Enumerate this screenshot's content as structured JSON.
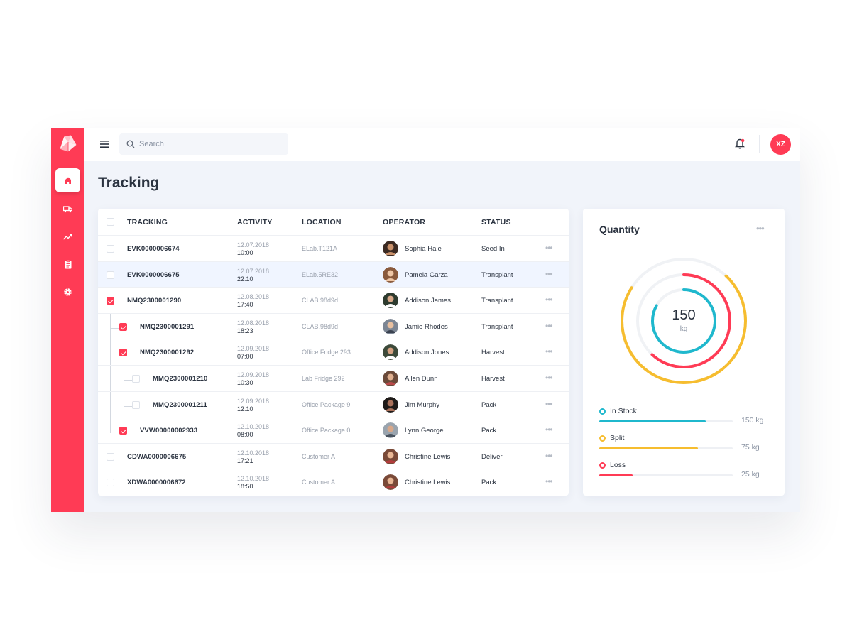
{
  "search": {
    "placeholder": "Search"
  },
  "user": {
    "initials": "XZ"
  },
  "page": {
    "title": "Tracking"
  },
  "table": {
    "headers": [
      "TRACKING",
      "ACTIVITY",
      "LOCATION",
      "OPERATOR",
      "STATUS"
    ],
    "rows": [
      {
        "tracking": "EVK0000006674",
        "date": "12.07.2018",
        "time": "10:00",
        "location": "ELab.T121A",
        "operator": "Sophia Hale",
        "status": "Seed In"
      },
      {
        "tracking": "EVK0000006675",
        "date": "12.07.2018",
        "time": "22:10",
        "location": "ELab.5RE32",
        "operator": "Pamela Garza",
        "status": "Transplant"
      },
      {
        "tracking": "NMQ2300001290",
        "date": "12.08.2018",
        "time": "17:40",
        "location": "CLAB.98d9d",
        "operator": "Addison James",
        "status": "Transplant"
      },
      {
        "tracking": "NMQ2300001291",
        "date": "12.08.2018",
        "time": "18:23",
        "location": "CLAB.98d9d",
        "operator": "Jamie Rhodes",
        "status": "Transplant"
      },
      {
        "tracking": "NMQ2300001292",
        "date": "12.09.2018",
        "time": "07:00",
        "location": "Office Fridge 293",
        "operator": "Addison Jones",
        "status": "Harvest"
      },
      {
        "tracking": "MMQ2300001210",
        "date": "12.09.2018",
        "time": "10:30",
        "location": "Lab Fridge 292",
        "operator": "Allen Dunn",
        "status": "Harvest"
      },
      {
        "tracking": "MMQ2300001211",
        "date": "12.09.2018",
        "time": "12:10",
        "location": "Office Package 9",
        "operator": "Jim Murphy",
        "status": "Pack"
      },
      {
        "tracking": "VVW00000002933",
        "date": "12.10.2018",
        "time": "08:00",
        "location": "Office Package 0",
        "operator": "Lynn George",
        "status": "Pack"
      },
      {
        "tracking": "CDWA0000006675",
        "date": "12.10.2018",
        "time": "17:21",
        "location": "Customer A",
        "operator": "Christine Lewis",
        "status": "Deliver"
      },
      {
        "tracking": "XDWA0000006672",
        "date": "12.10.2018",
        "time": "18:50",
        "location": "Customer A",
        "operator": "Christine Lewis",
        "status": "Pack"
      }
    ]
  },
  "quantity": {
    "title": "Quantity",
    "total_value": "150",
    "total_unit": "kg",
    "items": [
      {
        "label": "In Stock",
        "value": "150 kg",
        "fraction": 0.8,
        "color": "#1fb8cd"
      },
      {
        "label": "Split",
        "value": "75 kg",
        "fraction": 0.74,
        "color": "#f6bd2f"
      },
      {
        "label": "Loss",
        "value": "25 kg",
        "fraction": 0.25,
        "color": "#ff3b55"
      }
    ]
  },
  "colors": {
    "accent": "#ff3b55",
    "teal": "#1fb8cd",
    "yellow": "#f6bd2f"
  }
}
